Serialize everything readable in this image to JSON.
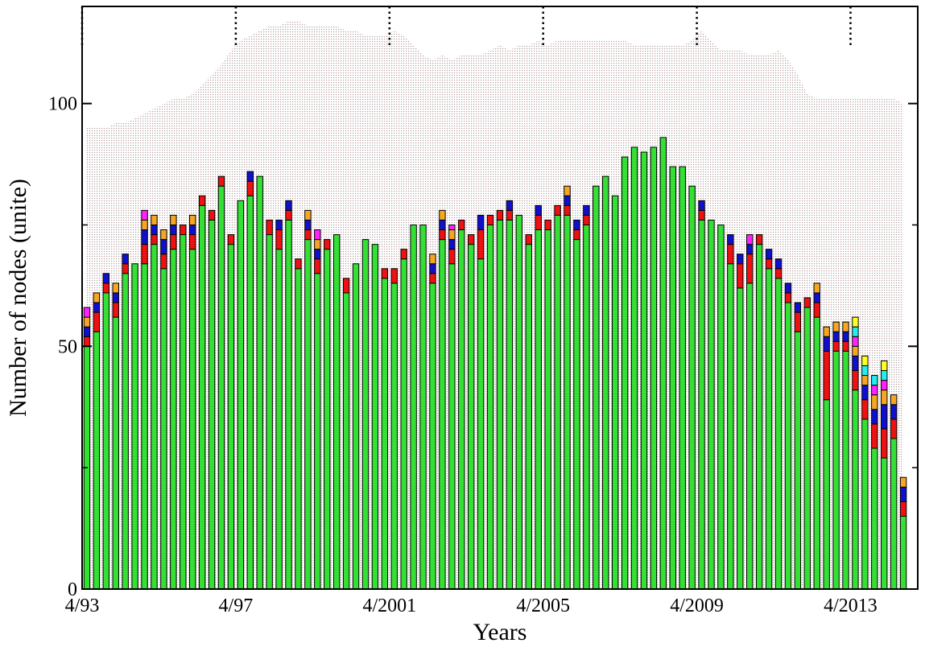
{
  "chart_data": {
    "type": "bar",
    "stacked": true,
    "xlabel": "Years",
    "ylabel": "Number of nodes (unite)",
    "xlim": [
      1993.25,
      2015
    ],
    "ylim": [
      0,
      120
    ],
    "xticks": [
      {
        "value": 1993.25,
        "label": "4/93"
      },
      {
        "value": 1997.25,
        "label": "4/97"
      },
      {
        "value": 2001.25,
        "label": "4/2001"
      },
      {
        "value": 2005.25,
        "label": "4/2005"
      },
      {
        "value": 2009.25,
        "label": "4/2009"
      },
      {
        "value": 2013.25,
        "label": "4/2013"
      }
    ],
    "yticks": [
      0,
      50,
      100
    ],
    "yminorticks": [
      25,
      75
    ],
    "x": [
      1993.375,
      1993.625,
      1993.875,
      1994.125,
      1994.375,
      1994.625,
      1994.875,
      1995.125,
      1995.375,
      1995.625,
      1995.875,
      1996.125,
      1996.375,
      1996.625,
      1996.875,
      1997.125,
      1997.375,
      1997.625,
      1997.875,
      1998.125,
      1998.375,
      1998.625,
      1998.875,
      1999.125,
      1999.375,
      1999.625,
      1999.875,
      2000.125,
      2000.375,
      2000.625,
      2000.875,
      2001.125,
      2001.375,
      2001.625,
      2001.875,
      2002.125,
      2002.375,
      2002.625,
      2002.875,
      2003.125,
      2003.375,
      2003.625,
      2003.875,
      2004.125,
      2004.375,
      2004.625,
      2004.875,
      2005.125,
      2005.375,
      2005.625,
      2005.875,
      2006.125,
      2006.375,
      2006.625,
      2006.875,
      2007.125,
      2007.375,
      2007.625,
      2007.875,
      2008.125,
      2008.375,
      2008.625,
      2008.875,
      2009.125,
      2009.375,
      2009.625,
      2009.875,
      2010.125,
      2010.375,
      2010.625,
      2010.875,
      2011.125,
      2011.375,
      2011.625,
      2011.875,
      2012.125,
      2012.375,
      2012.625,
      2012.875,
      2013.125,
      2013.375,
      2013.625,
      2013.875,
      2014.125,
      2014.375,
      2014.625
    ],
    "background_area": {
      "color": "#b49c9c",
      "values": [
        95,
        95,
        95,
        96,
        96,
        97,
        98,
        99,
        100,
        101,
        101,
        102,
        104,
        106,
        108,
        111,
        113,
        114,
        115,
        116,
        116,
        117,
        117,
        116,
        116,
        116,
        116,
        115,
        115,
        114,
        114,
        114,
        115,
        114,
        112,
        110,
        109,
        110,
        109,
        110,
        110,
        110,
        111,
        112,
        111,
        112,
        112,
        113,
        112,
        113,
        113,
        113,
        113,
        113,
        113,
        113,
        113,
        112,
        112,
        112,
        112,
        112,
        112,
        113,
        115,
        113,
        111,
        111,
        111,
        110,
        110,
        110,
        111,
        109,
        106,
        102,
        101,
        101,
        101,
        101,
        101,
        101,
        101,
        101,
        101,
        100
      ]
    },
    "series": [
      {
        "color": "#33e033",
        "values": [
          50,
          53,
          61,
          56,
          65,
          67,
          67,
          71,
          66,
          70,
          73,
          70,
          79,
          76,
          83,
          71,
          80,
          81,
          85,
          73,
          70,
          76,
          66,
          72,
          65,
          70,
          73,
          61,
          67,
          72,
          71,
          64,
          63,
          68,
          75,
          75,
          63,
          72,
          67,
          74,
          71,
          68,
          75,
          76,
          76,
          77,
          71,
          74,
          74,
          77,
          77,
          72,
          75,
          83,
          85,
          81,
          89,
          91,
          90,
          91,
          93,
          87,
          87,
          83,
          76,
          76,
          75,
          67,
          62,
          63,
          71,
          66,
          64,
          59,
          53,
          58,
          56,
          39,
          49,
          49,
          41,
          35,
          29,
          27,
          31,
          15
        ]
      },
      {
        "color": "#ee1111",
        "values": [
          2,
          4,
          2,
          3,
          2,
          0,
          4,
          2,
          3,
          3,
          2,
          3,
          2,
          2,
          2,
          2,
          0,
          3,
          0,
          3,
          4,
          2,
          2,
          2,
          3,
          2,
          0,
          3,
          0,
          0,
          0,
          2,
          3,
          2,
          0,
          0,
          2,
          2,
          3,
          2,
          2,
          6,
          2,
          2,
          2,
          0,
          2,
          3,
          2,
          2,
          2,
          2,
          2,
          0,
          0,
          0,
          0,
          0,
          0,
          0,
          0,
          0,
          0,
          0,
          2,
          0,
          0,
          4,
          5,
          6,
          2,
          2,
          2,
          2,
          4,
          2,
          3,
          10,
          2,
          2,
          4,
          4,
          5,
          6,
          4,
          3
        ]
      },
      {
        "color": "#1010cc",
        "values": [
          2,
          2,
          2,
          2,
          2,
          0,
          3,
          2,
          3,
          2,
          0,
          2,
          0,
          0,
          0,
          0,
          0,
          2,
          0,
          0,
          2,
          2,
          0,
          2,
          2,
          0,
          0,
          0,
          0,
          0,
          0,
          0,
          0,
          0,
          0,
          0,
          2,
          2,
          2,
          0,
          0,
          3,
          0,
          0,
          2,
          0,
          0,
          2,
          0,
          0,
          2,
          2,
          2,
          0,
          0,
          0,
          0,
          0,
          0,
          0,
          0,
          0,
          0,
          0,
          2,
          0,
          0,
          2,
          2,
          2,
          0,
          2,
          2,
          2,
          2,
          0,
          2,
          3,
          2,
          2,
          3,
          3,
          3,
          5,
          3,
          3
        ]
      },
      {
        "color": "#f5a623",
        "values": [
          2,
          2,
          0,
          2,
          0,
          0,
          2,
          2,
          2,
          2,
          0,
          2,
          0,
          0,
          0,
          0,
          0,
          0,
          0,
          0,
          0,
          0,
          0,
          2,
          2,
          0,
          0,
          0,
          0,
          0,
          0,
          0,
          0,
          0,
          0,
          0,
          2,
          2,
          2,
          0,
          0,
          0,
          0,
          0,
          0,
          0,
          0,
          0,
          0,
          0,
          2,
          0,
          0,
          0,
          0,
          0,
          0,
          0,
          0,
          0,
          0,
          0,
          0,
          0,
          0,
          0,
          0,
          0,
          0,
          0,
          0,
          0,
          0,
          0,
          0,
          0,
          2,
          2,
          2,
          2,
          2,
          2,
          3,
          3,
          2,
          2
        ]
      },
      {
        "color": "#ff22ff",
        "values": [
          2,
          0,
          0,
          0,
          0,
          0,
          2,
          0,
          0,
          0,
          0,
          0,
          0,
          0,
          0,
          0,
          0,
          0,
          0,
          0,
          0,
          0,
          0,
          0,
          2,
          0,
          0,
          0,
          0,
          0,
          0,
          0,
          0,
          0,
          0,
          0,
          0,
          0,
          1,
          0,
          0,
          0,
          0,
          0,
          0,
          0,
          0,
          0,
          0,
          0,
          0,
          0,
          0,
          0,
          0,
          0,
          0,
          0,
          0,
          0,
          0,
          0,
          0,
          0,
          0,
          0,
          0,
          0,
          0,
          2,
          0,
          0,
          0,
          0,
          0,
          0,
          0,
          0,
          0,
          0,
          2,
          0,
          2,
          2,
          0,
          0
        ]
      },
      {
        "color": "#22eeee",
        "values": [
          0,
          0,
          0,
          0,
          0,
          0,
          0,
          0,
          0,
          0,
          0,
          0,
          0,
          0,
          0,
          0,
          0,
          0,
          0,
          0,
          0,
          0,
          0,
          0,
          0,
          0,
          0,
          0,
          0,
          0,
          0,
          0,
          0,
          0,
          0,
          0,
          0,
          0,
          0,
          0,
          0,
          0,
          0,
          0,
          0,
          0,
          0,
          0,
          0,
          0,
          0,
          0,
          0,
          0,
          0,
          0,
          0,
          0,
          0,
          0,
          0,
          0,
          0,
          0,
          0,
          0,
          0,
          0,
          0,
          0,
          0,
          0,
          0,
          0,
          0,
          0,
          0,
          0,
          0,
          0,
          2,
          2,
          2,
          2,
          0,
          0
        ]
      },
      {
        "color": "#ffff22",
        "values": [
          0,
          0,
          0,
          0,
          0,
          0,
          0,
          0,
          0,
          0,
          0,
          0,
          0,
          0,
          0,
          0,
          0,
          0,
          0,
          0,
          0,
          0,
          0,
          0,
          0,
          0,
          0,
          0,
          0,
          0,
          0,
          0,
          0,
          0,
          0,
          0,
          0,
          0,
          0,
          0,
          0,
          0,
          0,
          0,
          0,
          0,
          0,
          0,
          0,
          0,
          0,
          0,
          0,
          0,
          0,
          0,
          0,
          0,
          0,
          0,
          0,
          0,
          0,
          0,
          0,
          0,
          0,
          0,
          0,
          0,
          0,
          0,
          0,
          0,
          0,
          0,
          0,
          0,
          0,
          0,
          2,
          2,
          0,
          2,
          0,
          0
        ]
      }
    ]
  }
}
